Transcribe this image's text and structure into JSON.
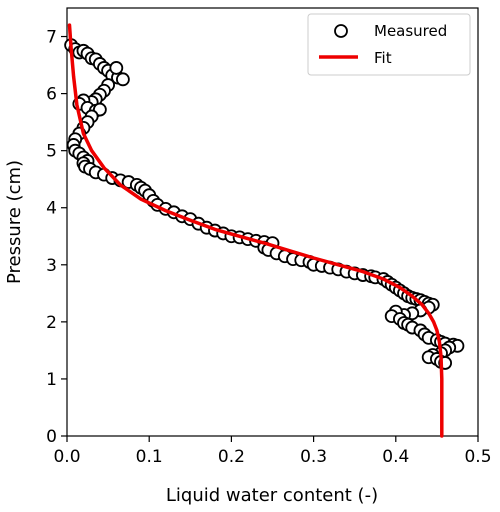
{
  "chart_data": {
    "type": "scatter",
    "title": "",
    "xlabel": "Liquid water content (-)",
    "ylabel": "Pressure (cm)",
    "xlim": [
      0,
      0.5
    ],
    "ylim": [
      0,
      7.5
    ],
    "xticks": [
      "0.0",
      "0.1",
      "0.2",
      "0.3",
      "0.4",
      "0.5"
    ],
    "yticks": [
      "0",
      "1",
      "2",
      "3",
      "4",
      "5",
      "6",
      "7"
    ],
    "grid": false,
    "legend_position": "top-right",
    "legend": [
      {
        "label": "Measured",
        "marker": "open-circle",
        "color": "#000000"
      },
      {
        "label": "Fit",
        "marker": "line",
        "color": "#ee0000"
      }
    ],
    "series": [
      {
        "name": "Measured",
        "marker": "open-circle",
        "color": "#000000",
        "points": [
          [
            0.005,
            6.85
          ],
          [
            0.01,
            6.78
          ],
          [
            0.015,
            6.72
          ],
          [
            0.02,
            6.75
          ],
          [
            0.025,
            6.7
          ],
          [
            0.03,
            6.62
          ],
          [
            0.035,
            6.6
          ],
          [
            0.04,
            6.52
          ],
          [
            0.045,
            6.45
          ],
          [
            0.05,
            6.4
          ],
          [
            0.055,
            6.32
          ],
          [
            0.062,
            6.28
          ],
          [
            0.068,
            6.25
          ],
          [
            0.06,
            6.45
          ],
          [
            0.05,
            6.15
          ],
          [
            0.045,
            6.05
          ],
          [
            0.04,
            5.98
          ],
          [
            0.035,
            5.9
          ],
          [
            0.03,
            5.85
          ],
          [
            0.02,
            5.88
          ],
          [
            0.015,
            5.82
          ],
          [
            0.025,
            5.75
          ],
          [
            0.035,
            5.7
          ],
          [
            0.04,
            5.72
          ],
          [
            0.03,
            5.6
          ],
          [
            0.025,
            5.5
          ],
          [
            0.02,
            5.4
          ],
          [
            0.015,
            5.3
          ],
          [
            0.01,
            5.2
          ],
          [
            0.008,
            5.1
          ],
          [
            0.01,
            5.0
          ],
          [
            0.015,
            4.95
          ],
          [
            0.02,
            4.88
          ],
          [
            0.025,
            4.82
          ],
          [
            0.02,
            4.78
          ],
          [
            0.022,
            4.72
          ],
          [
            0.028,
            4.68
          ],
          [
            0.035,
            4.62
          ],
          [
            0.045,
            4.58
          ],
          [
            0.055,
            4.52
          ],
          [
            0.065,
            4.48
          ],
          [
            0.075,
            4.45
          ],
          [
            0.085,
            4.4
          ],
          [
            0.09,
            4.35
          ],
          [
            0.095,
            4.3
          ],
          [
            0.1,
            4.22
          ],
          [
            0.105,
            4.12
          ],
          [
            0.11,
            4.05
          ],
          [
            0.12,
            3.98
          ],
          [
            0.13,
            3.92
          ],
          [
            0.14,
            3.85
          ],
          [
            0.15,
            3.8
          ],
          [
            0.16,
            3.72
          ],
          [
            0.17,
            3.65
          ],
          [
            0.18,
            3.6
          ],
          [
            0.19,
            3.55
          ],
          [
            0.2,
            3.5
          ],
          [
            0.21,
            3.48
          ],
          [
            0.22,
            3.45
          ],
          [
            0.23,
            3.42
          ],
          [
            0.24,
            3.4
          ],
          [
            0.25,
            3.38
          ],
          [
            0.24,
            3.3
          ],
          [
            0.245,
            3.26
          ],
          [
            0.255,
            3.2
          ],
          [
            0.265,
            3.15
          ],
          [
            0.275,
            3.1
          ],
          [
            0.285,
            3.08
          ],
          [
            0.295,
            3.05
          ],
          [
            0.3,
            3.0
          ],
          [
            0.31,
            2.98
          ],
          [
            0.32,
            2.95
          ],
          [
            0.33,
            2.92
          ],
          [
            0.34,
            2.88
          ],
          [
            0.35,
            2.85
          ],
          [
            0.36,
            2.82
          ],
          [
            0.37,
            2.8
          ],
          [
            0.375,
            2.78
          ],
          [
            0.385,
            2.75
          ],
          [
            0.39,
            2.7
          ],
          [
            0.395,
            2.65
          ],
          [
            0.4,
            2.6
          ],
          [
            0.405,
            2.55
          ],
          [
            0.41,
            2.5
          ],
          [
            0.415,
            2.45
          ],
          [
            0.42,
            2.42
          ],
          [
            0.425,
            2.4
          ],
          [
            0.43,
            2.38
          ],
          [
            0.435,
            2.35
          ],
          [
            0.44,
            2.32
          ],
          [
            0.445,
            2.3
          ],
          [
            0.44,
            2.25
          ],
          [
            0.43,
            2.2
          ],
          [
            0.42,
            2.15
          ],
          [
            0.41,
            2.12
          ],
          [
            0.4,
            2.18
          ],
          [
            0.395,
            2.1
          ],
          [
            0.405,
            2.05
          ],
          [
            0.41,
            1.98
          ],
          [
            0.415,
            1.95
          ],
          [
            0.42,
            1.9
          ],
          [
            0.43,
            1.85
          ],
          [
            0.435,
            1.78
          ],
          [
            0.44,
            1.72
          ],
          [
            0.45,
            1.68
          ],
          [
            0.455,
            1.65
          ],
          [
            0.46,
            1.62
          ],
          [
            0.47,
            1.6
          ],
          [
            0.475,
            1.58
          ],
          [
            0.465,
            1.55
          ],
          [
            0.46,
            1.5
          ],
          [
            0.455,
            1.45
          ],
          [
            0.445,
            1.42
          ],
          [
            0.44,
            1.38
          ],
          [
            0.45,
            1.35
          ],
          [
            0.455,
            1.3
          ],
          [
            0.46,
            1.28
          ]
        ]
      },
      {
        "name": "Fit",
        "marker": "line",
        "color": "#ee0000",
        "points": [
          [
            0.003,
            7.2
          ],
          [
            0.005,
            6.8
          ],
          [
            0.008,
            6.3
          ],
          [
            0.012,
            5.8
          ],
          [
            0.02,
            5.3
          ],
          [
            0.03,
            5.0
          ],
          [
            0.045,
            4.7
          ],
          [
            0.065,
            4.4
          ],
          [
            0.09,
            4.15
          ],
          [
            0.12,
            3.95
          ],
          [
            0.15,
            3.78
          ],
          [
            0.18,
            3.62
          ],
          [
            0.21,
            3.5
          ],
          [
            0.24,
            3.38
          ],
          [
            0.27,
            3.25
          ],
          [
            0.3,
            3.12
          ],
          [
            0.33,
            3.0
          ],
          [
            0.36,
            2.88
          ],
          [
            0.385,
            2.75
          ],
          [
            0.405,
            2.6
          ],
          [
            0.42,
            2.45
          ],
          [
            0.432,
            2.3
          ],
          [
            0.44,
            2.15
          ],
          [
            0.446,
            2.0
          ],
          [
            0.45,
            1.85
          ],
          [
            0.453,
            1.65
          ],
          [
            0.455,
            1.4
          ],
          [
            0.456,
            1.0
          ],
          [
            0.456,
            0.5
          ],
          [
            0.456,
            0.0
          ]
        ]
      }
    ]
  }
}
